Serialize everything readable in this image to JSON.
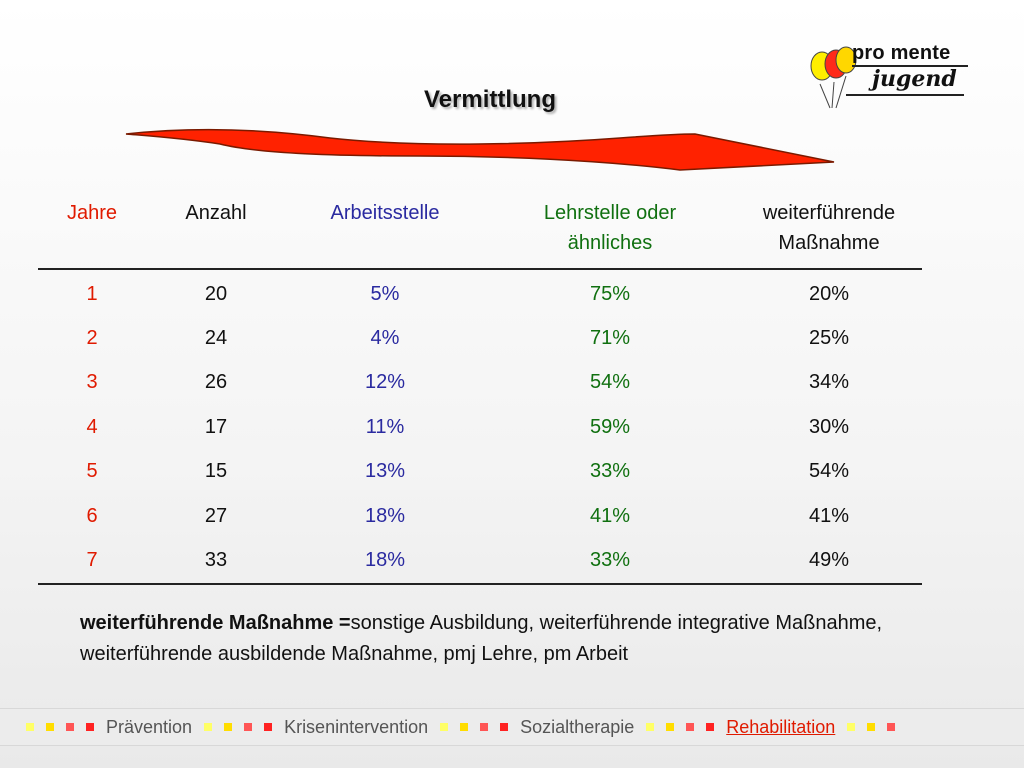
{
  "logo": {
    "line1": "pro mente",
    "line2": "jugend"
  },
  "title": "Vermittlung",
  "table": {
    "headers": {
      "jahre": "Jahre",
      "anzahl": "Anzahl",
      "arbeitsstelle": "Arbeitsstelle",
      "lehrstelle_line1": "Lehrstelle oder",
      "lehrstelle_line2": "ähnliches",
      "weiter_line1": "weiterführende",
      "weiter_line2": "Maßnahme"
    },
    "rows": [
      {
        "jahre": "1",
        "anzahl": "20",
        "arbeitsstelle": "5%",
        "lehrstelle": "75%",
        "weiter": "20%"
      },
      {
        "jahre": "2",
        "anzahl": "24",
        "arbeitsstelle": "4%",
        "lehrstelle": "71%",
        "weiter": "25%"
      },
      {
        "jahre": "3",
        "anzahl": "26",
        "arbeitsstelle": "12%",
        "lehrstelle": "54%",
        "weiter": "34%"
      },
      {
        "jahre": "4",
        "anzahl": "17",
        "arbeitsstelle": "11%",
        "lehrstelle": "59%",
        "weiter": "30%"
      },
      {
        "jahre": "5",
        "anzahl": "15",
        "arbeitsstelle": "13%",
        "lehrstelle": "33%",
        "weiter": "54%"
      },
      {
        "jahre": "6",
        "anzahl": "27",
        "arbeitsstelle": "18%",
        "lehrstelle": "41%",
        "weiter": "41%"
      },
      {
        "jahre": "7",
        "anzahl": "33",
        "arbeitsstelle": "18%",
        "lehrstelle": "33%",
        "weiter": "49%"
      }
    ]
  },
  "note": {
    "term": "weiterführende Maßnahme =",
    "definition": "sonstige Ausbildung, weiterführende integrative Maßnahme, weiterführende ausbildende Maßnahme, pmj Lehre, pm Arbeit"
  },
  "footer": {
    "items": [
      "Prävention",
      "Krisenintervention",
      "Sozialtherapie",
      "Rehabilitation"
    ],
    "active": "Rehabilitation"
  },
  "colors": {
    "jahre": "#e01a00",
    "arbeitsstelle": "#2a2aa0",
    "lehrstelle": "#107010",
    "arrow": "#ff2200",
    "active_link": "#e01a00"
  },
  "icons": [
    "balloon-logo-icon",
    "arrow-icon",
    "bullet-square-icon"
  ]
}
